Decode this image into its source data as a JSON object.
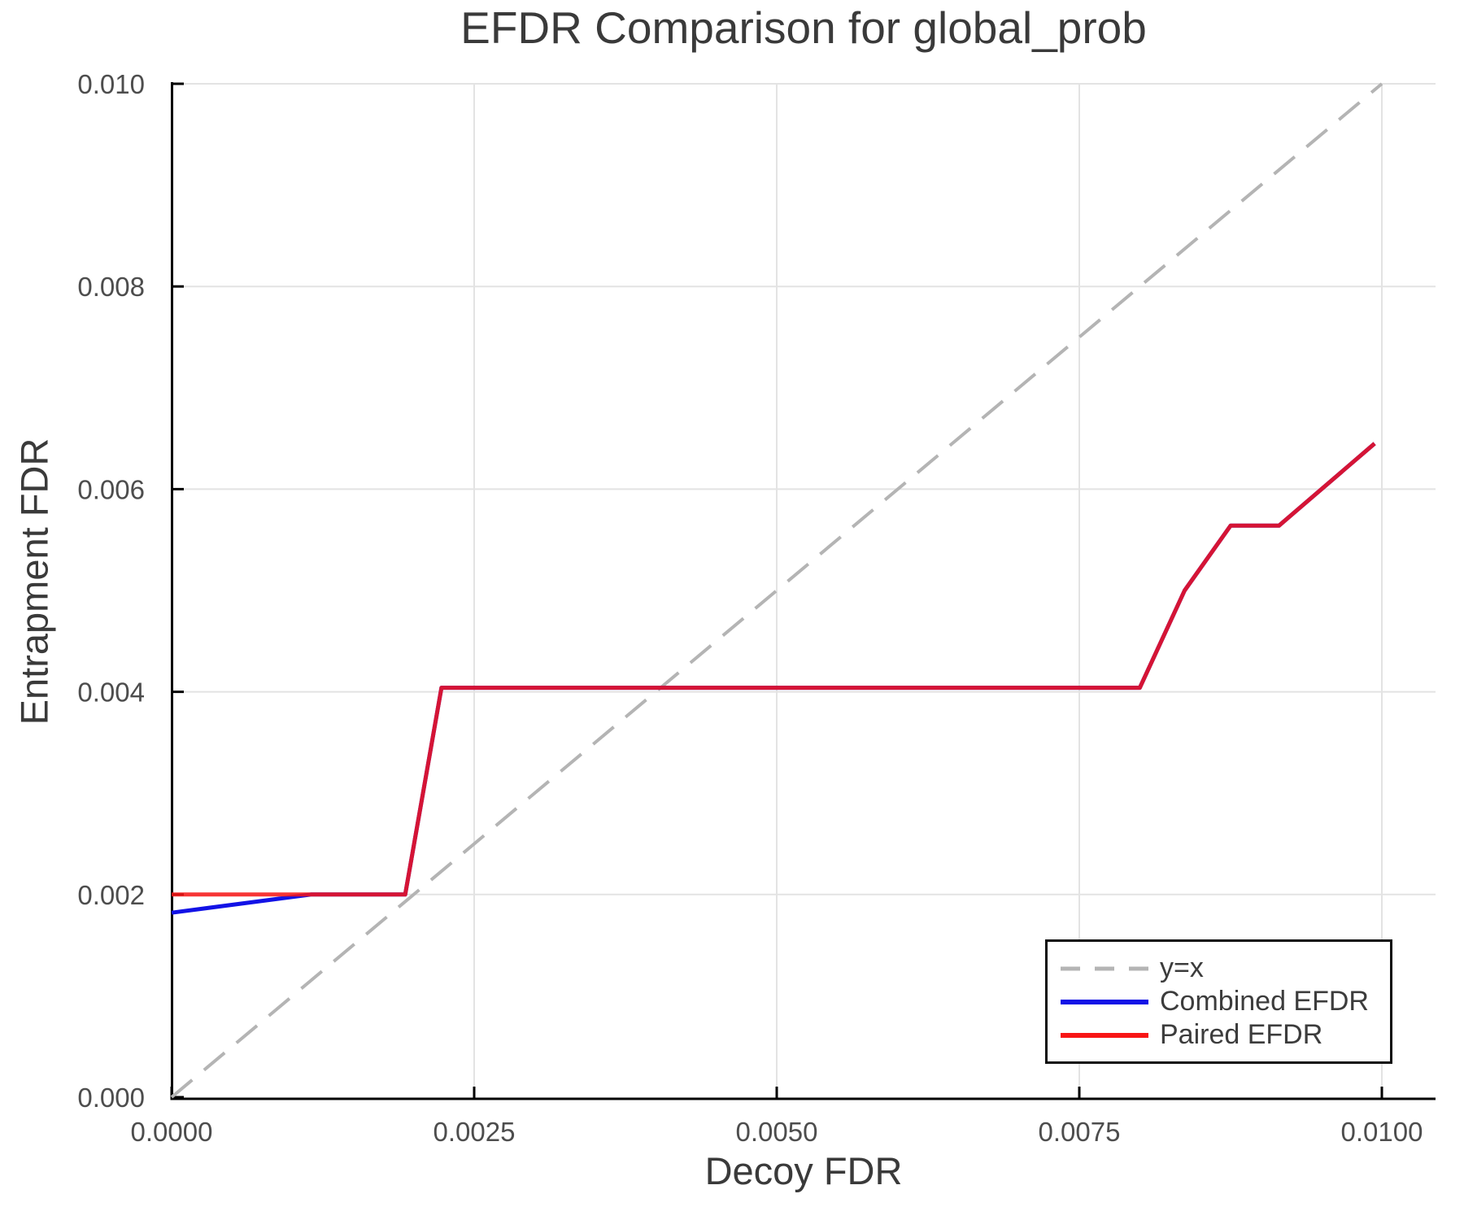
{
  "figure": {
    "background": "#ffffff"
  },
  "chart_data": {
    "type": "line",
    "title": "EFDR Comparison for global_prob",
    "xlabel": "Decoy FDR",
    "ylabel": "Entrapment FDR",
    "xlim": [
      0.0,
      0.01
    ],
    "ylim": [
      0.0,
      0.01
    ],
    "grid": true,
    "legend_position": "bottom-right",
    "x_ticks": {
      "values": [
        0.0,
        0.0025,
        0.005,
        0.0075,
        0.01
      ],
      "labels": [
        "0.0000",
        "0.0025",
        "0.0050",
        "0.0075",
        "0.0100"
      ]
    },
    "y_ticks": {
      "values": [
        0.0,
        0.002,
        0.004,
        0.006,
        0.008,
        0.01
      ],
      "labels": [
        "0.000",
        "0.002",
        "0.004",
        "0.006",
        "0.008",
        "0.010"
      ]
    },
    "series": [
      {
        "name": "y=x",
        "color": "#b4b4b4",
        "dashed": true,
        "width": 4,
        "opacity": 1,
        "points": [
          [
            0.0,
            0.0
          ],
          [
            0.01,
            0.01
          ]
        ]
      },
      {
        "name": "Combined EFDR",
        "color": "#1212e6",
        "dashed": false,
        "width": 5,
        "opacity": 1,
        "points": [
          [
            0.0,
            0.00182
          ],
          [
            0.00115,
            0.002
          ],
          [
            0.00193,
            0.002
          ],
          [
            0.00223,
            0.00404
          ],
          [
            0.008,
            0.00404
          ],
          [
            0.00837,
            0.005
          ],
          [
            0.00875,
            0.00564
          ],
          [
            0.00915,
            0.00564
          ],
          [
            0.00994,
            0.00645
          ]
        ]
      },
      {
        "name": "Paired EFDR",
        "color": "#f81515",
        "dashed": false,
        "width": 5,
        "opacity": 0.85,
        "points": [
          [
            0.0,
            0.002
          ],
          [
            0.00193,
            0.002
          ],
          [
            0.00223,
            0.00404
          ],
          [
            0.008,
            0.00404
          ],
          [
            0.00837,
            0.005
          ],
          [
            0.00875,
            0.00564
          ],
          [
            0.00915,
            0.00564
          ],
          [
            0.00994,
            0.00645
          ]
        ]
      }
    ],
    "colors": {
      "grid": "#e3e3e3",
      "axis": "#000000",
      "tick_text": "#4d4d4d",
      "label_text": "#3a3a3a"
    }
  }
}
